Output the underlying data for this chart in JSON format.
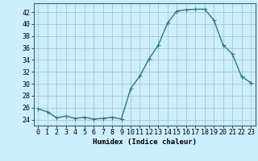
{
  "x": [
    0,
    1,
    2,
    3,
    4,
    5,
    6,
    7,
    8,
    9,
    10,
    11,
    12,
    13,
    14,
    15,
    16,
    17,
    18,
    19,
    20,
    21,
    22,
    23
  ],
  "y": [
    25.8,
    25.3,
    24.3,
    24.6,
    24.2,
    24.4,
    24.1,
    24.2,
    24.4,
    24.1,
    29.2,
    31.3,
    34.2,
    36.5,
    40.2,
    42.2,
    42.4,
    42.5,
    42.5,
    40.7,
    36.5,
    35.0,
    31.2,
    30.2
  ],
  "line_color": "#2e7d6e",
  "marker": "D",
  "marker_size": 1.8,
  "linewidth": 1.0,
  "bg_color": "#cceeff",
  "grid_color": "#aabbbb",
  "xlabel": "Humidex (Indice chaleur)",
  "ylim": [
    23,
    43.5
  ],
  "xlim": [
    -0.5,
    23.5
  ],
  "yticks": [
    24,
    26,
    28,
    30,
    32,
    34,
    36,
    38,
    40,
    42
  ],
  "xticks": [
    0,
    1,
    2,
    3,
    4,
    5,
    6,
    7,
    8,
    9,
    10,
    11,
    12,
    13,
    14,
    15,
    16,
    17,
    18,
    19,
    20,
    21,
    22,
    23
  ],
  "label_fontsize": 6.5,
  "tick_fontsize": 6.0
}
